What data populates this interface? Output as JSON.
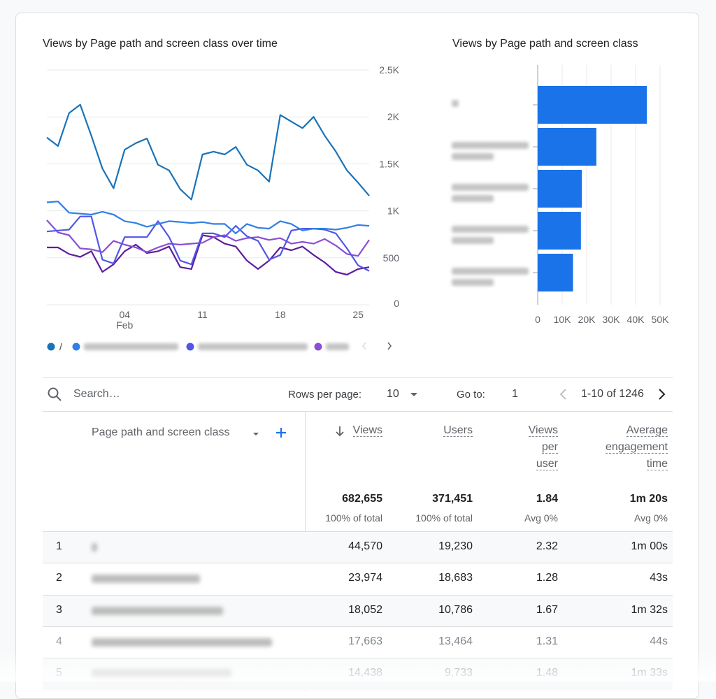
{
  "chart_data": [
    {
      "type": "line",
      "title": "Views by Page path and screen class over time",
      "categories": [
        null,
        null,
        null,
        null,
        null,
        null,
        null,
        "04",
        null,
        null,
        null,
        null,
        null,
        null,
        "11",
        null,
        null,
        null,
        null,
        null,
        null,
        "18",
        null,
        null,
        null,
        null,
        null,
        null,
        "25",
        null
      ],
      "category_sublabels": [
        null,
        null,
        null,
        null,
        null,
        null,
        null,
        "Feb",
        null,
        null,
        null,
        null,
        null,
        null,
        null,
        null,
        null,
        null,
        null,
        null,
        null,
        null,
        null,
        null,
        null,
        null,
        null,
        null,
        null,
        null
      ],
      "ylim": [
        0,
        2500
      ],
      "yticks": [
        0,
        500,
        {
          "value": 1000,
          "label": "1K"
        },
        {
          "value": 1500,
          "label": "1.5K"
        },
        {
          "value": 2000,
          "label": "2K"
        },
        {
          "value": 2500,
          "label": "2.5K"
        }
      ],
      "grid": true,
      "legend": "bottom",
      "series": [
        {
          "name": "/",
          "color": "#1a73b8",
          "values": [
            1780,
            1690,
            2040,
            2130,
            1800,
            1450,
            1240,
            1650,
            1720,
            1770,
            1490,
            1430,
            1230,
            1120,
            1600,
            1630,
            1600,
            1680,
            1490,
            1430,
            1310,
            2020,
            1950,
            1880,
            2000,
            1800,
            1630,
            1430,
            1300,
            1160
          ]
        },
        {
          "color": "#2f80e6",
          "values": [
            1090,
            1100,
            980,
            970,
            960,
            990,
            960,
            890,
            870,
            830,
            860,
            890,
            880,
            870,
            880,
            860,
            860,
            760,
            860,
            820,
            810,
            890,
            860,
            790,
            810,
            810,
            800,
            820,
            850,
            840
          ]
        },
        {
          "color": "#5256e6",
          "values": [
            780,
            790,
            800,
            940,
            940,
            480,
            440,
            720,
            720,
            720,
            890,
            720,
            470,
            430,
            760,
            760,
            720,
            840,
            730,
            680,
            480,
            530,
            790,
            810,
            810,
            800,
            760,
            600,
            420,
            360
          ]
        },
        {
          "color": "#8a4fd3",
          "values": [
            900,
            770,
            740,
            600,
            590,
            560,
            680,
            640,
            610,
            560,
            610,
            650,
            640,
            650,
            660,
            720,
            740,
            680,
            710,
            720,
            690,
            710,
            650,
            670,
            650,
            700,
            630,
            540,
            520,
            690
          ]
        },
        {
          "color": "#5e1d9e",
          "values": [
            610,
            610,
            540,
            510,
            570,
            350,
            430,
            570,
            640,
            550,
            570,
            620,
            400,
            380,
            740,
            720,
            650,
            620,
            470,
            380,
            470,
            610,
            580,
            620,
            530,
            450,
            350,
            320,
            380,
            400
          ]
        }
      ]
    },
    {
      "type": "bar",
      "orientation": "horizontal",
      "title": "Views by Page path and screen class",
      "categories": [
        null,
        null,
        null,
        null,
        null
      ],
      "values": [
        44570,
        23974,
        18052,
        17663,
        14438
      ],
      "color": "#1a73e8",
      "xlim": [
        0,
        50000
      ],
      "xticks": [
        0,
        {
          "value": 10000,
          "label": "10K"
        },
        {
          "value": 20000,
          "label": "20K"
        },
        {
          "value": 30000,
          "label": "30K"
        },
        {
          "value": 40000,
          "label": "40K"
        },
        {
          "value": 50000,
          "label": "50K"
        }
      ],
      "grid": true
    }
  ],
  "toolbar": {
    "search_placeholder": "Search…",
    "rows_per_page_label": "Rows per page:",
    "rows_per_page": "10",
    "go_to_label": "Go to:",
    "go_to": "1",
    "range": "1-10 of 1246"
  },
  "table": {
    "dimension_header": "Page path and screen class",
    "metric_headers": [
      "Views",
      "Users",
      "Views per user",
      "Average engagement time"
    ],
    "totals": [
      [
        "682,655",
        "100% of total"
      ],
      [
        "371,451",
        "100% of total"
      ],
      [
        "1.84",
        "Avg 0%"
      ],
      [
        "1m 20s",
        "Avg 0%"
      ]
    ],
    "rows": [
      [
        "1",
        null,
        "44,570",
        "19,230",
        "2.32",
        "1m 00s"
      ],
      [
        "2",
        null,
        "23,974",
        "18,683",
        "1.28",
        "43s"
      ],
      [
        "3",
        null,
        "18,052",
        "10,786",
        "1.67",
        "1m 32s"
      ],
      [
        "4",
        null,
        "17,663",
        "13,464",
        "1.31",
        "44s"
      ],
      [
        "5",
        null,
        "14,438",
        "9,733",
        "1.48",
        "1m 33s"
      ]
    ]
  }
}
